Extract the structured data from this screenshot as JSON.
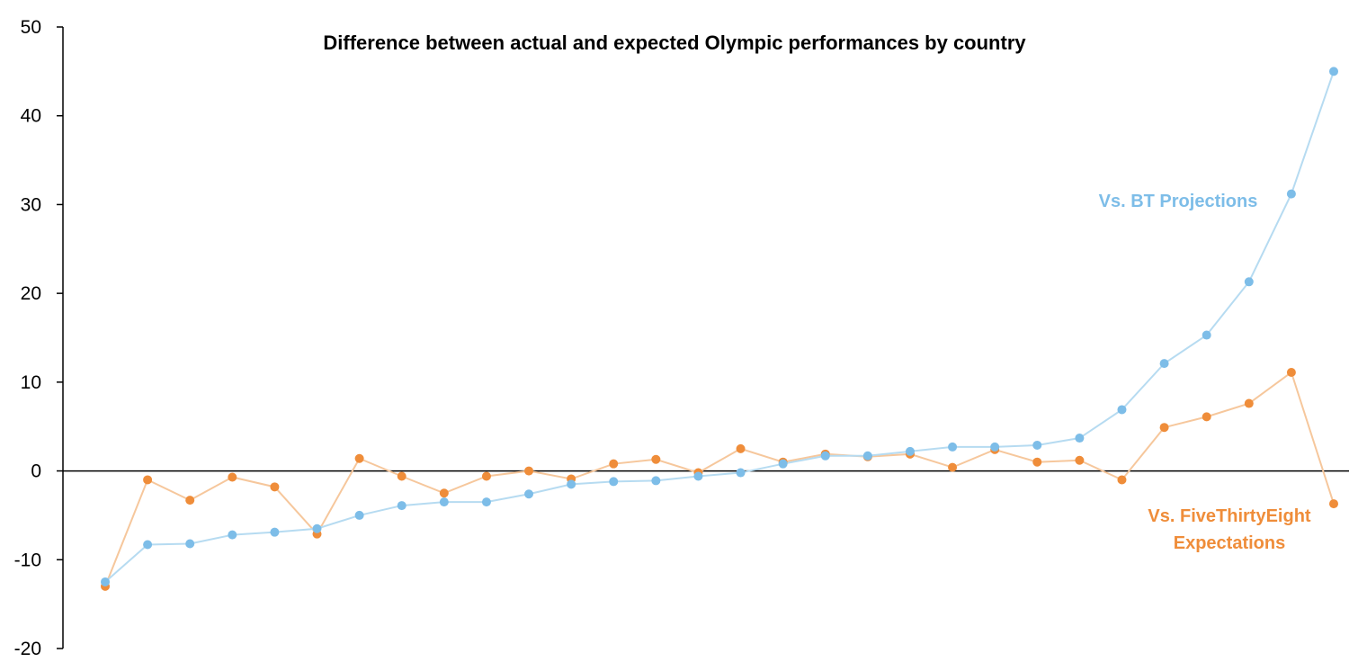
{
  "chart_data": {
    "type": "line",
    "title": "Difference between actual and expected Olympic performances by country",
    "xlabel": "",
    "ylabel": "",
    "ylim": [
      -20,
      50
    ],
    "yticks": [
      50,
      40,
      30,
      20,
      10,
      0,
      -10,
      -20
    ],
    "ytick_labels": [
      "50",
      "40",
      "30",
      "20",
      "10",
      "0",
      "-10",
      "-20"
    ],
    "grid": false,
    "zero_line": true,
    "series": [
      {
        "name": "Vs. BT Projections",
        "color": "#7dbde8",
        "line_color": "#b6dbf1",
        "values": [
          -12.5,
          -8.3,
          -8.2,
          -7.2,
          -6.9,
          -6.5,
          -5.0,
          -3.9,
          -3.5,
          -3.5,
          -2.6,
          -1.5,
          -1.2,
          -1.1,
          -0.6,
          -0.2,
          0.8,
          1.7,
          1.7,
          2.2,
          2.7,
          2.7,
          2.9,
          3.7,
          6.9,
          12.1,
          15.3,
          21.3,
          31.2,
          45.0
        ]
      },
      {
        "name": "Vs. FiveThirtyEight Expectations",
        "label_lines": [
          "Vs. FiveThirtyEight",
          "Expectations"
        ],
        "color": "#ef8d3a",
        "line_color": "#f6c79c",
        "values": [
          -13.0,
          -1.0,
          -3.3,
          -0.7,
          -1.8,
          -7.1,
          1.4,
          -0.6,
          -2.5,
          -0.6,
          0.0,
          -0.9,
          0.8,
          1.3,
          -0.2,
          2.5,
          1.0,
          1.9,
          1.6,
          1.9,
          0.4,
          2.4,
          1.0,
          1.2,
          -1.0,
          4.9,
          6.1,
          7.6,
          11.1,
          -3.7
        ]
      }
    ]
  }
}
